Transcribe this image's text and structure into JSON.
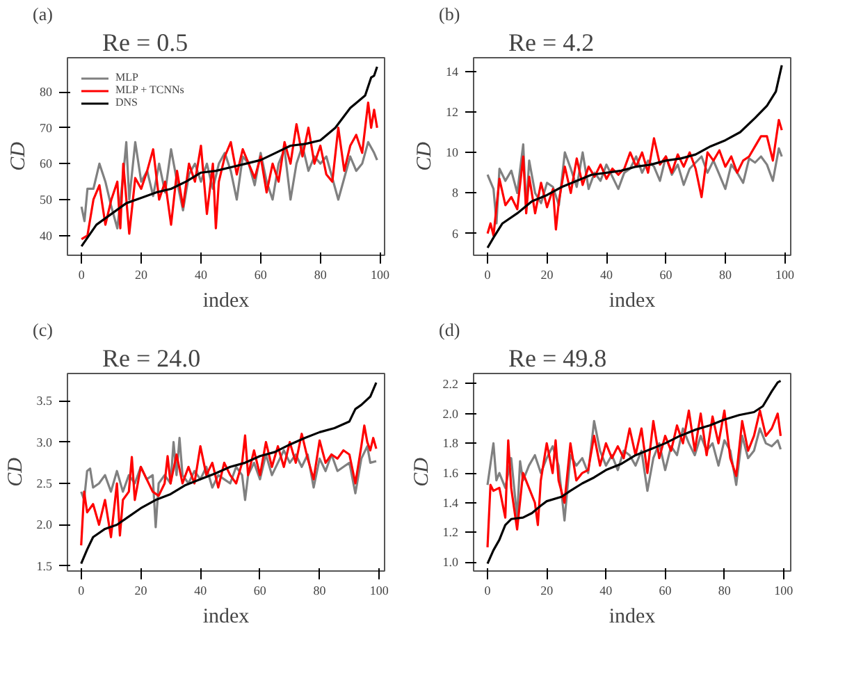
{
  "chart_data": [
    {
      "type": "line",
      "title": "Re = 0.5",
      "annotations": [
        "(a)"
      ],
      "xlabel": "index",
      "ylabel": "CD",
      "xlim": [
        -4.7,
        101.5
      ],
      "ylim": [
        34.5,
        89.5
      ],
      "xticks": [
        0,
        20,
        40,
        60,
        80,
        100
      ],
      "yticks": [
        40,
        50,
        60,
        70,
        80
      ],
      "grid": false,
      "legend": "top left",
      "marker": "none",
      "line_style": "solid",
      "series": [
        {
          "name": "MLP",
          "color": "#808080",
          "x": [
            0,
            1,
            2,
            4,
            6,
            8,
            10,
            12,
            14,
            15,
            16,
            18,
            20,
            22,
            24,
            26,
            28,
            30,
            32,
            34,
            36,
            38,
            40,
            42,
            44,
            46,
            48,
            50,
            52,
            54,
            56,
            58,
            60,
            62,
            64,
            66,
            68,
            70,
            72,
            74,
            76,
            78,
            80,
            82,
            84,
            86,
            88,
            90,
            92,
            94,
            96,
            98,
            99
          ],
          "values": [
            48,
            44,
            53,
            53,
            60,
            55,
            48,
            42,
            57,
            66,
            50,
            66,
            55,
            58,
            51,
            60,
            52,
            64,
            55,
            47,
            57,
            60,
            55,
            60,
            53,
            60,
            63,
            58,
            50,
            62,
            60,
            54,
            63,
            55,
            50,
            60,
            64,
            50,
            60,
            65,
            58,
            62,
            60,
            62,
            56,
            50,
            56,
            62,
            58,
            60,
            66,
            63,
            61
          ]
        },
        {
          "name": "MLP + TCNNs",
          "color": "#ff0000",
          "x": [
            0,
            2,
            4,
            6,
            8,
            10,
            12,
            13,
            14,
            16,
            18,
            20,
            22,
            24,
            26,
            28,
            30,
            32,
            34,
            36,
            38,
            40,
            42,
            44,
            45,
            46,
            48,
            50,
            52,
            54,
            56,
            58,
            60,
            62,
            64,
            66,
            68,
            70,
            72,
            74,
            76,
            78,
            80,
            82,
            84,
            86,
            88,
            90,
            92,
            94,
            96,
            97,
            98,
            99
          ],
          "values": [
            39,
            40,
            50,
            54,
            43,
            50,
            55,
            42,
            60,
            40.5,
            56,
            53,
            58,
            64,
            50,
            55,
            43,
            58,
            48,
            60,
            55,
            65,
            46,
            60,
            42,
            55,
            62,
            66,
            57,
            64,
            60,
            56,
            62,
            52,
            60,
            55,
            66,
            60,
            71,
            62,
            70,
            60,
            65,
            57,
            55,
            70,
            58,
            65,
            68,
            63,
            77,
            70,
            75,
            70
          ]
        },
        {
          "name": "DNS",
          "color": "#000000",
          "x": [
            0,
            5,
            10,
            15,
            20,
            25,
            30,
            35,
            40,
            45,
            50,
            55,
            60,
            65,
            70,
            75,
            80,
            85,
            90,
            95,
            97,
            98,
            99
          ],
          "values": [
            37,
            43,
            46,
            49,
            50.5,
            52,
            53,
            55,
            57.5,
            58,
            59,
            60,
            61,
            63,
            65,
            65.5,
            66.5,
            70,
            75.5,
            79,
            84,
            84.5,
            87
          ]
        }
      ]
    },
    {
      "type": "line",
      "title": "Re = 4.2",
      "annotations": [
        "(b)"
      ],
      "xlabel": "index",
      "ylabel": "CD",
      "xlim": [
        -4.7,
        102
      ],
      "ylim": [
        4.93,
        14.67
      ],
      "xticks": [
        0,
        20,
        40,
        60,
        80,
        100
      ],
      "yticks": [
        6,
        8,
        10,
        12,
        14
      ],
      "grid": false,
      "marker": "none",
      "line_style": "solid",
      "series": [
        {
          "color": "#808080",
          "x": [
            0,
            2,
            3,
            4,
            6,
            8,
            10,
            12,
            13,
            14,
            16,
            18,
            20,
            22,
            24,
            26,
            28,
            30,
            32,
            34,
            36,
            38,
            40,
            42,
            44,
            46,
            48,
            50,
            52,
            54,
            56,
            58,
            60,
            62,
            64,
            66,
            68,
            70,
            72,
            74,
            76,
            78,
            80,
            82,
            84,
            86,
            88,
            90,
            92,
            94,
            96,
            98,
            99
          ],
          "values": [
            8.9,
            8.2,
            6.5,
            9.2,
            8.6,
            9.1,
            8.0,
            10.4,
            7.2,
            9.6,
            8.0,
            7.5,
            8.5,
            8.3,
            7.4,
            10.0,
            9.2,
            8.3,
            10.0,
            8.2,
            9.0,
            8.6,
            9.4,
            8.8,
            8.2,
            9.0,
            9.2,
            9.8,
            9.0,
            9.6,
            9.3,
            8.6,
            9.8,
            8.9,
            9.4,
            8.4,
            9.2,
            9.5,
            9.8,
            9.0,
            9.6,
            8.9,
            8.2,
            9.4,
            9.0,
            8.5,
            9.7,
            9.5,
            9.8,
            9.4,
            8.6,
            10.2,
            9.8
          ]
        },
        {
          "color": "#ff0000",
          "x": [
            0,
            1,
            2,
            4,
            6,
            8,
            10,
            12,
            13,
            14,
            16,
            18,
            20,
            22,
            23,
            24,
            26,
            28,
            30,
            32,
            34,
            36,
            38,
            40,
            42,
            44,
            46,
            48,
            50,
            52,
            54,
            56,
            58,
            60,
            62,
            64,
            66,
            68,
            70,
            72,
            74,
            76,
            78,
            80,
            82,
            84,
            86,
            88,
            90,
            92,
            94,
            96,
            98,
            99
          ],
          "values": [
            6.0,
            6.5,
            5.9,
            8.7,
            7.4,
            7.8,
            7.2,
            9.8,
            7.0,
            8.8,
            7.0,
            8.5,
            7.3,
            8.2,
            6.2,
            7.6,
            9.3,
            8.0,
            9.7,
            8.4,
            9.3,
            8.8,
            9.4,
            8.7,
            9.2,
            8.9,
            9.2,
            10.0,
            9.3,
            10.0,
            9.0,
            10.7,
            9.4,
            9.8,
            9.0,
            9.9,
            9.3,
            10.0,
            9.2,
            7.8,
            10.0,
            9.6,
            10.1,
            9.3,
            9.8,
            9.0,
            9.6,
            9.8,
            10.3,
            10.8,
            10.8,
            9.6,
            11.6,
            11.1
          ]
        },
        {
          "color": "#000000",
          "x": [
            0,
            2,
            5,
            10,
            15,
            20,
            25,
            30,
            35,
            40,
            45,
            50,
            55,
            60,
            65,
            70,
            75,
            80,
            85,
            90,
            94,
            97,
            99
          ],
          "values": [
            5.3,
            5.8,
            6.5,
            7.0,
            7.6,
            7.9,
            8.3,
            8.6,
            8.9,
            9.0,
            9.1,
            9.3,
            9.4,
            9.6,
            9.7,
            9.9,
            10.3,
            10.6,
            11.0,
            11.7,
            12.3,
            13.0,
            14.3
          ]
        }
      ]
    },
    {
      "type": "line",
      "title": "Re = 24.0",
      "annotations": [
        "(c)"
      ],
      "xlabel": "index",
      "ylabel": "CD",
      "xlim": [
        -4.6,
        101.8
      ],
      "ylim": [
        1.44,
        3.83
      ],
      "xticks": [
        0,
        20,
        40,
        60,
        80,
        100
      ],
      "yticks": [
        {
          "value": 1.5,
          "label": "1.5"
        },
        {
          "value": 2.0,
          "label": "2.0"
        },
        {
          "value": 2.5,
          "label": "2.5"
        },
        {
          "value": 3.0,
          "label": "3.0"
        },
        {
          "value": 3.5,
          "label": "3.5"
        }
      ],
      "grid": false,
      "marker": "none",
      "line_style": "solid",
      "series": [
        {
          "color": "#808080",
          "x": [
            0,
            1,
            2,
            3,
            4,
            6,
            8,
            10,
            12,
            14,
            16,
            18,
            20,
            22,
            24,
            25,
            26,
            28,
            30,
            31,
            32,
            33,
            34,
            36,
            38,
            40,
            42,
            44,
            46,
            48,
            50,
            52,
            54,
            55,
            56,
            58,
            60,
            62,
            64,
            66,
            68,
            70,
            72,
            74,
            76,
            78,
            80,
            82,
            84,
            86,
            88,
            90,
            92,
            94,
            96,
            97,
            99
          ],
          "values": [
            2.4,
            2.3,
            2.65,
            2.68,
            2.45,
            2.5,
            2.6,
            2.4,
            2.65,
            2.4,
            2.6,
            2.5,
            2.7,
            2.55,
            2.6,
            1.97,
            2.5,
            2.6,
            2.5,
            3.0,
            2.6,
            3.05,
            2.6,
            2.5,
            2.65,
            2.55,
            2.7,
            2.45,
            2.6,
            2.55,
            2.5,
            2.7,
            2.6,
            2.3,
            2.6,
            2.75,
            2.55,
            2.85,
            2.6,
            2.75,
            2.9,
            2.75,
            2.85,
            2.7,
            2.85,
            2.45,
            2.8,
            2.65,
            2.85,
            2.65,
            2.7,
            2.75,
            2.38,
            2.8,
            2.95,
            2.75,
            2.77
          ]
        },
        {
          "color": "#ff0000",
          "x": [
            0,
            1,
            2,
            4,
            6,
            8,
            10,
            12,
            13,
            14,
            16,
            17,
            18,
            20,
            22,
            24,
            26,
            28,
            29,
            30,
            32,
            34,
            36,
            38,
            40,
            42,
            44,
            46,
            48,
            50,
            52,
            54,
            55,
            56,
            58,
            60,
            62,
            64,
            66,
            68,
            70,
            72,
            74,
            76,
            78,
            80,
            82,
            84,
            86,
            88,
            90,
            92,
            94,
            95,
            96,
            97,
            98,
            99
          ],
          "values": [
            1.75,
            2.4,
            2.15,
            2.25,
            2.0,
            2.3,
            1.85,
            2.5,
            1.87,
            2.3,
            2.4,
            2.82,
            2.3,
            2.7,
            2.55,
            2.4,
            2.35,
            2.5,
            2.83,
            2.5,
            2.85,
            2.5,
            2.7,
            2.5,
            2.95,
            2.6,
            2.75,
            2.45,
            2.75,
            2.6,
            2.5,
            2.75,
            3.08,
            2.6,
            2.9,
            2.6,
            3.0,
            2.7,
            2.95,
            2.7,
            3.0,
            2.75,
            3.1,
            2.8,
            2.55,
            3.02,
            2.75,
            2.85,
            2.8,
            2.9,
            2.85,
            2.5,
            2.95,
            3.2,
            3.0,
            2.9,
            3.05,
            2.92
          ]
        },
        {
          "color": "#000000",
          "x": [
            0,
            2,
            4,
            8,
            12,
            16,
            20,
            25,
            30,
            35,
            40,
            45,
            50,
            55,
            60,
            65,
            70,
            75,
            80,
            85,
            90,
            92,
            94,
            97,
            99
          ],
          "values": [
            1.53,
            1.7,
            1.85,
            1.95,
            2.0,
            2.1,
            2.2,
            2.3,
            2.37,
            2.48,
            2.55,
            2.62,
            2.7,
            2.75,
            2.83,
            2.88,
            2.97,
            3.05,
            3.12,
            3.17,
            3.25,
            3.4,
            3.45,
            3.55,
            3.72
          ]
        }
      ]
    },
    {
      "type": "line",
      "title": "Re = 49.8",
      "annotations": [
        "(d)"
      ],
      "xlabel": "index",
      "ylabel": "CD",
      "xlim": [
        -4.7,
        102.4
      ],
      "ylim": [
        0.94,
        2.27
      ],
      "xticks": [
        0,
        20,
        40,
        60,
        80,
        100
      ],
      "yticks": [
        {
          "value": 1.0,
          "label": "1.0"
        },
        1.2,
        1.4,
        1.6,
        1.8,
        {
          "value": 2.0,
          "label": "2.0"
        },
        2.2
      ],
      "grid": false,
      "marker": "none",
      "line_style": "solid",
      "series": [
        {
          "color": "#808080",
          "x": [
            0,
            2,
            3,
            4,
            6,
            8,
            10,
            11,
            12,
            14,
            16,
            18,
            20,
            22,
            24,
            26,
            28,
            30,
            32,
            34,
            36,
            38,
            40,
            42,
            44,
            46,
            48,
            50,
            52,
            54,
            56,
            58,
            60,
            62,
            64,
            66,
            68,
            70,
            72,
            74,
            76,
            78,
            80,
            82,
            84,
            86,
            88,
            90,
            92,
            94,
            96,
            98,
            99
          ],
          "values": [
            1.52,
            1.8,
            1.55,
            1.6,
            1.5,
            1.7,
            1.3,
            1.68,
            1.55,
            1.65,
            1.72,
            1.6,
            1.7,
            1.78,
            1.65,
            1.28,
            1.72,
            1.65,
            1.7,
            1.6,
            1.95,
            1.75,
            1.65,
            1.72,
            1.62,
            1.75,
            1.72,
            1.65,
            1.75,
            1.48,
            1.7,
            1.8,
            1.62,
            1.78,
            1.72,
            1.9,
            1.8,
            1.72,
            1.85,
            1.75,
            1.8,
            1.65,
            1.82,
            1.75,
            1.52,
            1.85,
            1.7,
            1.75,
            1.9,
            1.8,
            1.78,
            1.82,
            1.76
          ]
        },
        {
          "color": "#ff0000",
          "x": [
            0,
            1,
            2,
            4,
            6,
            7,
            8,
            10,
            12,
            14,
            16,
            17,
            18,
            20,
            22,
            23,
            24,
            26,
            28,
            30,
            32,
            34,
            36,
            38,
            40,
            42,
            44,
            46,
            48,
            50,
            52,
            54,
            56,
            58,
            60,
            62,
            64,
            66,
            68,
            70,
            72,
            74,
            76,
            78,
            80,
            82,
            84,
            86,
            88,
            90,
            92,
            94,
            96,
            98,
            99
          ],
          "values": [
            1.1,
            1.52,
            1.48,
            1.5,
            1.3,
            1.82,
            1.5,
            1.22,
            1.6,
            1.5,
            1.4,
            1.25,
            1.55,
            1.8,
            1.6,
            1.82,
            1.55,
            1.4,
            1.8,
            1.55,
            1.6,
            1.62,
            1.85,
            1.65,
            1.8,
            1.7,
            1.78,
            1.7,
            1.9,
            1.72,
            1.9,
            1.6,
            1.95,
            1.7,
            1.85,
            1.75,
            1.92,
            1.8,
            2.02,
            1.75,
            2.0,
            1.72,
            1.98,
            1.8,
            2.02,
            1.7,
            1.58,
            1.95,
            1.75,
            1.85,
            2.02,
            1.85,
            1.9,
            2.0,
            1.85
          ]
        },
        {
          "color": "#000000",
          "x": [
            0,
            2,
            4,
            6,
            8,
            12,
            15,
            18,
            20,
            25,
            28,
            32,
            36,
            40,
            45,
            50,
            55,
            60,
            65,
            70,
            75,
            80,
            85,
            90,
            93,
            96,
            98,
            99
          ],
          "values": [
            0.99,
            1.08,
            1.15,
            1.25,
            1.29,
            1.3,
            1.33,
            1.38,
            1.41,
            1.44,
            1.48,
            1.53,
            1.57,
            1.62,
            1.66,
            1.72,
            1.76,
            1.8,
            1.85,
            1.89,
            1.92,
            1.96,
            1.99,
            2.01,
            2.05,
            2.15,
            2.21,
            2.22
          ]
        }
      ]
    }
  ]
}
